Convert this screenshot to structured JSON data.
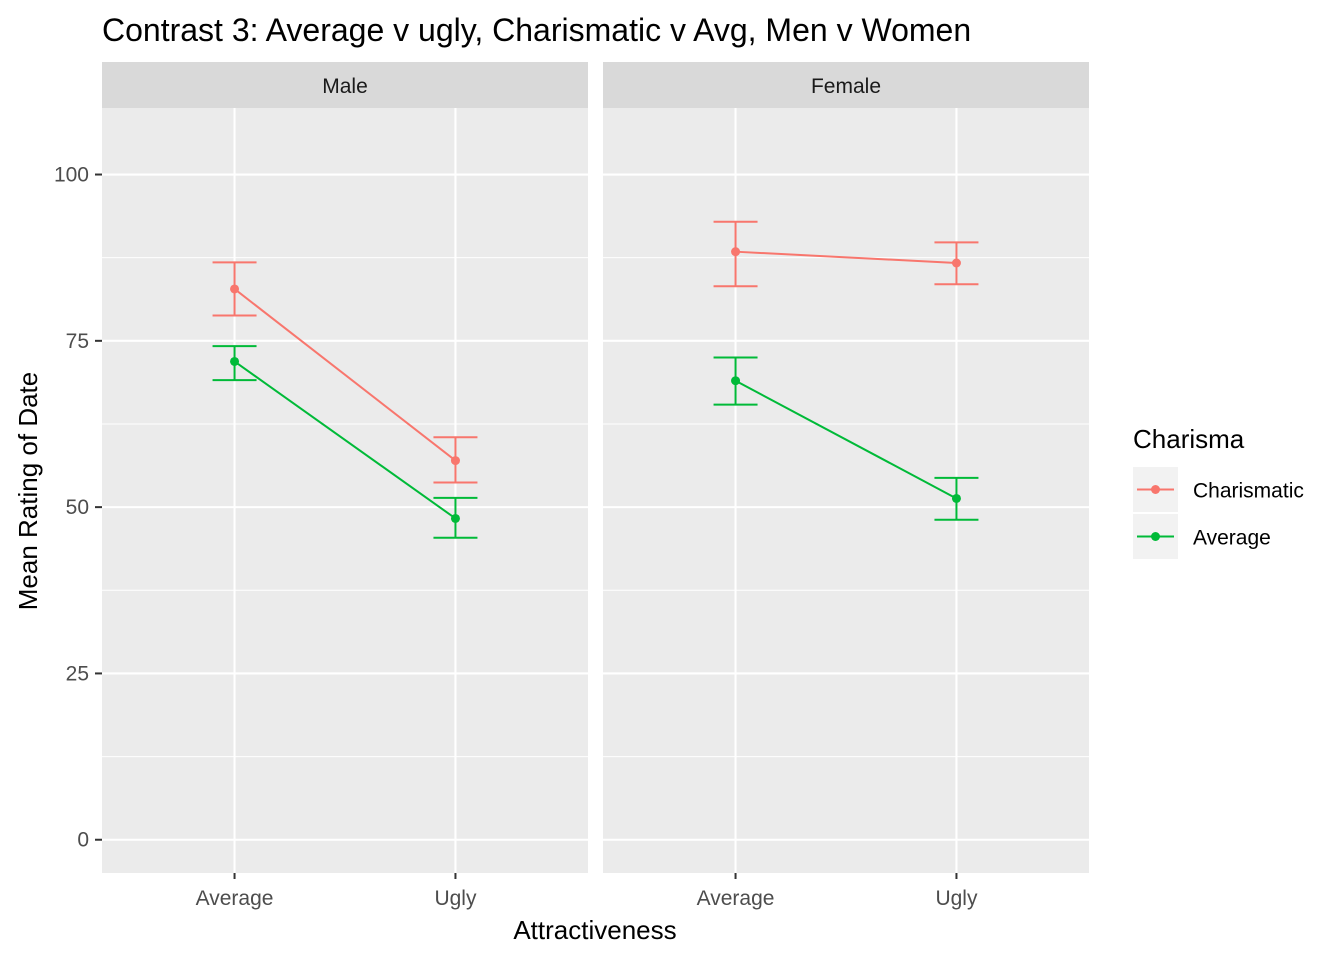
{
  "chart_data": {
    "type": "line",
    "title": "Contrast 3: Average v ugly, Charismatic v Avg, Men v Women",
    "xlabel": "Attractiveness",
    "ylabel": "Mean Rating of Date",
    "categories": [
      "Average",
      "Ugly"
    ],
    "ylim": [
      -5,
      110
    ],
    "yticks": [
      0,
      25,
      50,
      75,
      100
    ],
    "grid": true,
    "legend": {
      "title": "Charisma",
      "placement": "right"
    },
    "panels": [
      {
        "label": "Male",
        "series": [
          {
            "name": "Charismatic",
            "color": "#F8766D",
            "values": [
              82.8,
              57.0
            ],
            "ci_low": [
              78.8,
              53.7
            ],
            "ci_high": [
              86.8,
              60.5
            ]
          },
          {
            "name": "Average",
            "color": "#00BA38",
            "values": [
              71.9,
              48.3
            ],
            "ci_low": [
              69.1,
              45.4
            ],
            "ci_high": [
              74.2,
              51.4
            ]
          }
        ]
      },
      {
        "label": "Female",
        "series": [
          {
            "name": "Charismatic",
            "color": "#F8766D",
            "values": [
              88.4,
              86.7
            ],
            "ci_low": [
              83.2,
              83.5
            ],
            "ci_high": [
              92.9,
              89.8
            ]
          },
          {
            "name": "Average",
            "color": "#00BA38",
            "values": [
              69.0,
              51.3
            ],
            "ci_low": [
              65.4,
              48.1
            ],
            "ci_high": [
              72.5,
              54.4
            ]
          }
        ]
      }
    ]
  }
}
